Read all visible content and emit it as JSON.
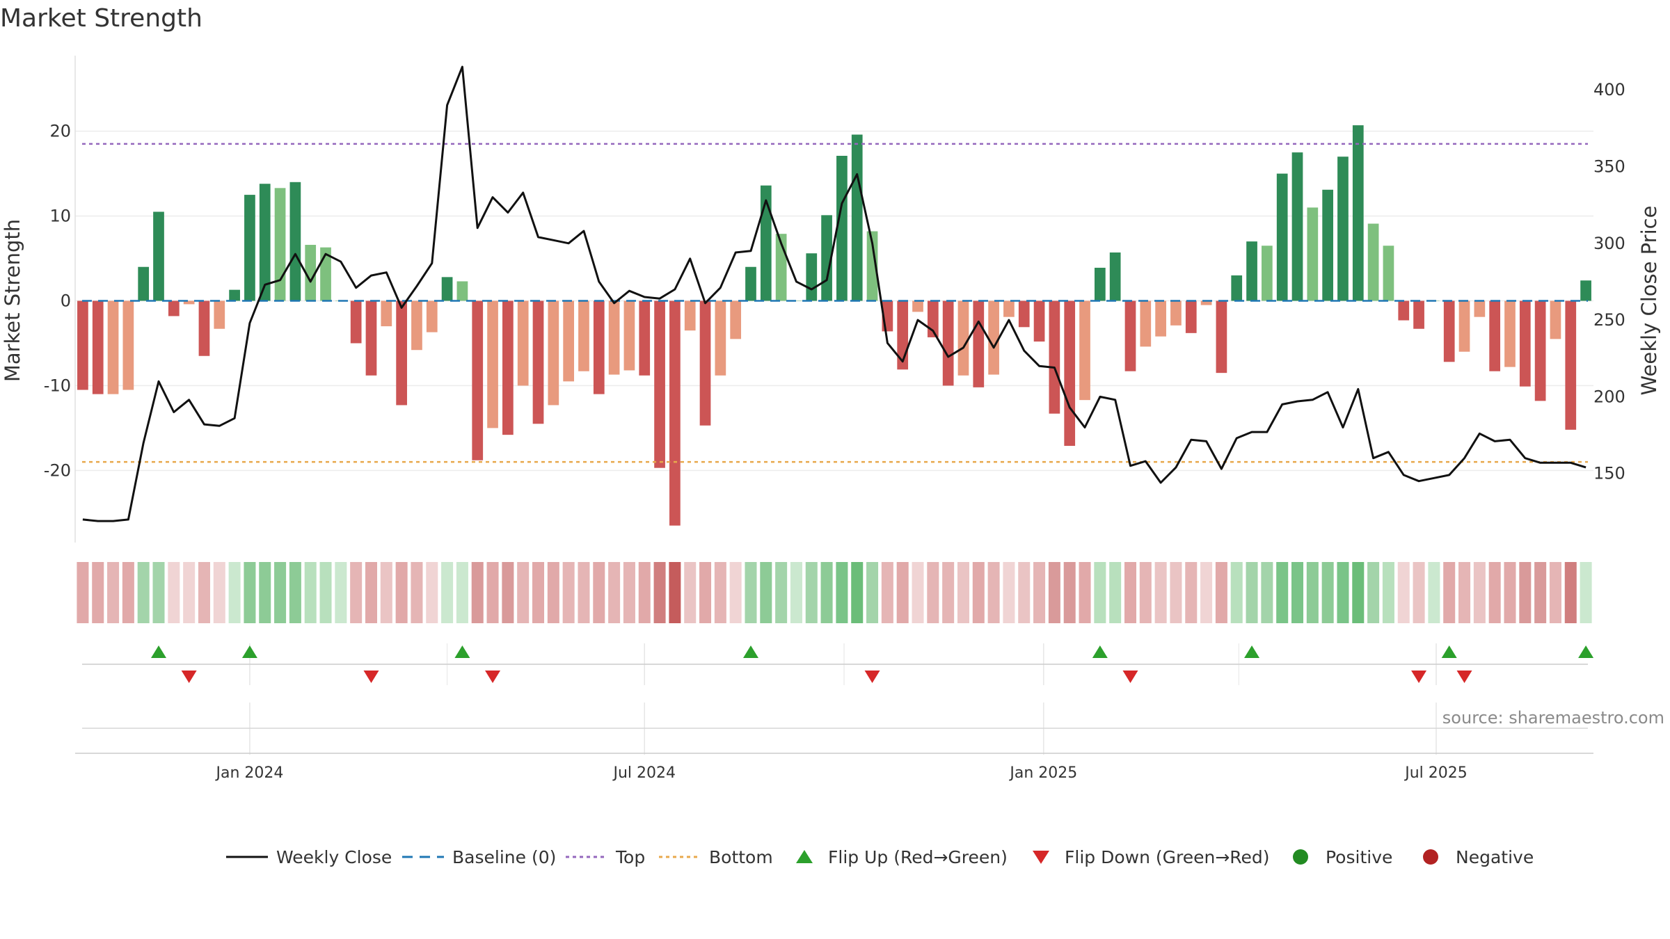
{
  "chart_data": {
    "type": "bar",
    "title": "Market Strength",
    "ylabel_left": "Market Strength",
    "ylabel_right": "Weekly Close Price",
    "source": "source: sharemaestro.com",
    "left_yticks": [
      20,
      10,
      0,
      -10,
      -20
    ],
    "left_ylim": [
      -28.5,
      28.5
    ],
    "right_yticks": [
      400,
      350,
      300,
      250,
      200,
      150
    ],
    "right_ylim": [
      105,
      420
    ],
    "x_range": [
      "2023-10-16",
      "2025-09-08"
    ],
    "x_ticks": [
      {
        "date": "2024-01-01",
        "label": "Jan 2024"
      },
      {
        "date": "2024-07-01",
        "label": "Jul 2024"
      },
      {
        "date": "2025-01-01",
        "label": "Jan 2025"
      },
      {
        "date": "2025-07-01",
        "label": "Jul 2025"
      }
    ],
    "top_level": 18.5,
    "bottom_level": -19,
    "dates": [
      "2023-10-16",
      "2023-10-23",
      "2023-10-30",
      "2023-11-06",
      "2023-11-13",
      "2023-11-20",
      "2023-11-27",
      "2023-12-04",
      "2023-12-11",
      "2023-12-18",
      "2023-12-25",
      "2024-01-01",
      "2024-01-08",
      "2024-01-15",
      "2024-01-22",
      "2024-01-29",
      "2024-02-05",
      "2024-02-12",
      "2024-02-19",
      "2024-02-26",
      "2024-03-04",
      "2024-03-11",
      "2024-03-18",
      "2024-03-25",
      "2024-04-01",
      "2024-04-08",
      "2024-04-15",
      "2024-04-22",
      "2024-04-29",
      "2024-05-06",
      "2024-05-13",
      "2024-05-20",
      "2024-05-27",
      "2024-06-03",
      "2024-06-10",
      "2024-06-17",
      "2024-06-24",
      "2024-07-01",
      "2024-07-08",
      "2024-07-15",
      "2024-07-22",
      "2024-07-29",
      "2024-08-05",
      "2024-08-12",
      "2024-08-19",
      "2024-08-26",
      "2024-09-02",
      "2024-09-09",
      "2024-09-16",
      "2024-09-23",
      "2024-09-30",
      "2024-10-07",
      "2024-10-14",
      "2024-10-21",
      "2024-10-28",
      "2024-11-04",
      "2024-11-11",
      "2024-11-18",
      "2024-11-25",
      "2024-12-02",
      "2024-12-09",
      "2024-12-16",
      "2024-12-23",
      "2024-12-30",
      "2025-01-06",
      "2025-01-13",
      "2025-01-20",
      "2025-01-27",
      "2025-02-03",
      "2025-02-10",
      "2025-02-17",
      "2025-02-24",
      "2025-03-03",
      "2025-03-10",
      "2025-03-17",
      "2025-03-24",
      "2025-03-31",
      "2025-04-07",
      "2025-04-14",
      "2025-04-21",
      "2025-04-28",
      "2025-05-05",
      "2025-05-12",
      "2025-05-19",
      "2025-05-26",
      "2025-06-02",
      "2025-06-09",
      "2025-06-16",
      "2025-06-23",
      "2025-06-30",
      "2025-07-07",
      "2025-07-14",
      "2025-07-21",
      "2025-07-28",
      "2025-08-04",
      "2025-08-11",
      "2025-08-18",
      "2025-08-25",
      "2025-09-01",
      "2025-09-08"
    ],
    "strength": [
      -10.5,
      -11,
      -11,
      -10.5,
      4,
      10.5,
      -1.8,
      -0.4,
      -6.5,
      -3.3,
      1.3,
      12.5,
      13.8,
      13.3,
      14,
      6.6,
      6.3,
      0,
      -5,
      -8.8,
      -3,
      -12.3,
      -5.8,
      -3.7,
      2.8,
      2.3,
      -18.8,
      -15,
      -15.8,
      -10,
      -14.5,
      -12.3,
      -9.5,
      -8.3,
      -11,
      -8.7,
      -8.2,
      -8.8,
      -19.7,
      -26.5,
      -3.5,
      -14.7,
      -8.8,
      -4.5,
      4,
      13.6,
      7.9,
      0,
      5.6,
      10.1,
      17.1,
      19.6,
      8.2,
      -3.6,
      -8.1,
      -1.3,
      -4.3,
      -10,
      -8.8,
      -10.2,
      -8.7,
      -1.9,
      -3.1,
      -4.8,
      -13.3,
      -17.1,
      -11.7,
      3.9,
      5.7,
      -8.3,
      -5.4,
      -4.2,
      -2.9,
      -3.8,
      -0.5,
      -8.5,
      3,
      7,
      6.5,
      15,
      17.5,
      11,
      13.1,
      17,
      20.7,
      9.1,
      6.5,
      -2.3,
      -3.3,
      0,
      -7.2,
      -6,
      -1.9,
      -8.3,
      -7.8,
      -10.1,
      -11.8,
      -4.5,
      -15.2,
      2.4
    ],
    "bar_colors": [
      "#cc5555",
      "#cc5555",
      "#e89a7e",
      "#e89a7e",
      "#2e8b57",
      "#2e8b57",
      "#cc5555",
      "#e89a7e",
      "#cc5555",
      "#e89a7e",
      "#2e8b57",
      "#2e8b57",
      "#2e8b57",
      "#7ec07e",
      "#2e8b57",
      "#7ec07e",
      "#7ec07e",
      "#7ec07e",
      "#cc5555",
      "#cc5555",
      "#e89a7e",
      "#cc5555",
      "#e89a7e",
      "#e89a7e",
      "#2e8b57",
      "#7ec07e",
      "#cc5555",
      "#e89a7e",
      "#cc5555",
      "#e89a7e",
      "#cc5555",
      "#e89a7e",
      "#e89a7e",
      "#e89a7e",
      "#cc5555",
      "#e89a7e",
      "#e89a7e",
      "#cc5555",
      "#cc5555",
      "#cc5555",
      "#e89a7e",
      "#cc5555",
      "#e89a7e",
      "#e89a7e",
      "#2e8b57",
      "#2e8b57",
      "#7ec07e",
      "#7ec07e",
      "#2e8b57",
      "#2e8b57",
      "#2e8b57",
      "#2e8b57",
      "#7ec07e",
      "#cc5555",
      "#cc5555",
      "#e89a7e",
      "#cc5555",
      "#cc5555",
      "#e89a7e",
      "#cc5555",
      "#e89a7e",
      "#e89a7e",
      "#cc5555",
      "#cc5555",
      "#cc5555",
      "#cc5555",
      "#e89a7e",
      "#2e8b57",
      "#2e8b57",
      "#cc5555",
      "#e89a7e",
      "#e89a7e",
      "#e89a7e",
      "#cc5555",
      "#e89a7e",
      "#cc5555",
      "#2e8b57",
      "#2e8b57",
      "#7ec07e",
      "#2e8b57",
      "#2e8b57",
      "#7ec07e",
      "#2e8b57",
      "#2e8b57",
      "#2e8b57",
      "#7ec07e",
      "#7ec07e",
      "#cc5555",
      "#cc5555",
      "#7ec07e",
      "#cc5555",
      "#e89a7e",
      "#e89a7e",
      "#cc5555",
      "#e89a7e",
      "#cc5555",
      "#cc5555",
      "#e89a7e",
      "#cc5555",
      "#2e8b57"
    ],
    "weekly_close": [
      120,
      119,
      119,
      120,
      170,
      210,
      190,
      198,
      182,
      181,
      186,
      248,
      273,
      276,
      293,
      275,
      293,
      288,
      271,
      279,
      281,
      258,
      272,
      287,
      390,
      415,
      310,
      330,
      320,
      333,
      304,
      302,
      300,
      308,
      275,
      261,
      269,
      265,
      264,
      270,
      290,
      261,
      271,
      294,
      295,
      328,
      300,
      275,
      270,
      276,
      326,
      345,
      300,
      235,
      223,
      250,
      243,
      226,
      232,
      249,
      232,
      250,
      230,
      220,
      219,
      193,
      180,
      200,
      198,
      155,
      158,
      144,
      154,
      172,
      171,
      153,
      173,
      177,
      177,
      195,
      197,
      198,
      203,
      180,
      205,
      160,
      164,
      149,
      145,
      147,
      149,
      160,
      176,
      171,
      172,
      160,
      157,
      157,
      157,
      154
    ],
    "heat_colors": [
      "#e1a9a9",
      "#e1a9a9",
      "#e5b5b5",
      "#e1a9a9",
      "#a3d4aa",
      "#a3d4aa",
      "#f0d4d4",
      "#f0d4d4",
      "#e5b5b5",
      "#f0d4d4",
      "#cbe8cf",
      "#8dcb96",
      "#8dcb96",
      "#8dcb96",
      "#8dcb96",
      "#b8e0bd",
      "#b8e0bd",
      "#cbe8cf",
      "#e5b5b5",
      "#e1a9a9",
      "#eac4c4",
      "#e1a9a9",
      "#e5b5b5",
      "#f0d4d4",
      "#cbe8cf",
      "#cbe8cf",
      "#d99a9a",
      "#e1a9a9",
      "#d99a9a",
      "#e5b5b5",
      "#e1a9a9",
      "#e1a9a9",
      "#e5b5b5",
      "#e5b5b5",
      "#e1a9a9",
      "#e5b5b5",
      "#e5b5b5",
      "#e1a9a9",
      "#d07e7e",
      "#c55c5c",
      "#eac4c4",
      "#e1a9a9",
      "#e5b5b5",
      "#f0d4d4",
      "#a3d4aa",
      "#8dcb96",
      "#a3d4aa",
      "#cbe8cf",
      "#a3d4aa",
      "#8dcb96",
      "#7ac488",
      "#6bbd79",
      "#a3d4aa",
      "#e5b5b5",
      "#e1a9a9",
      "#f0d4d4",
      "#e5b5b5",
      "#e5b5b5",
      "#eac4c4",
      "#e1a9a9",
      "#e5b5b5",
      "#f0d4d4",
      "#eac4c4",
      "#e5b5b5",
      "#d99a9a",
      "#d99a9a",
      "#e1a9a9",
      "#b8e0bd",
      "#b8e0bd",
      "#e1a9a9",
      "#e5b5b5",
      "#eac4c4",
      "#eac4c4",
      "#e5b5b5",
      "#f0d4d4",
      "#e1a9a9",
      "#b8e0bd",
      "#a3d4aa",
      "#a3d4aa",
      "#7ac488",
      "#7ac488",
      "#8dcb96",
      "#8dcb96",
      "#7ac488",
      "#6bbd79",
      "#a3d4aa",
      "#b8e0bd",
      "#f0d4d4",
      "#eac4c4",
      "#cbe8cf",
      "#e1a9a9",
      "#e5b5b5",
      "#eac4c4",
      "#e1a9a9",
      "#e1a9a9",
      "#d99a9a",
      "#d99a9a",
      "#e5b5b5",
      "#d07e7e",
      "#cbe8cf"
    ],
    "flip_up_dates": [
      "2023-11-20",
      "2024-01-01",
      "2024-04-08",
      "2024-08-19",
      "2025-01-27",
      "2025-04-07",
      "2025-07-07",
      "2025-09-08"
    ],
    "flip_down_dates": [
      "2023-12-04",
      "2024-02-26",
      "2024-04-22",
      "2024-10-14",
      "2025-02-10",
      "2025-06-23",
      "2025-07-14"
    ],
    "legend": [
      {
        "label": "Weekly Close",
        "kind": "line",
        "color": "#111111"
      },
      {
        "label": "Baseline (0)",
        "kind": "dash",
        "color": "#1f77b4"
      },
      {
        "label": "Top",
        "kind": "dot",
        "color": "#9467bd"
      },
      {
        "label": "Bottom",
        "kind": "dot",
        "color": "#e8a94c"
      },
      {
        "label": "Flip Up (Red→Green)",
        "kind": "up",
        "color": "#2ca02c"
      },
      {
        "label": "Flip Down (Green→Red)",
        "kind": "down",
        "color": "#d62728"
      },
      {
        "label": "Positive",
        "kind": "circle",
        "color": "#228b22"
      },
      {
        "label": "Negative",
        "kind": "circle",
        "color": "#b22222"
      }
    ],
    "colors": {
      "top_line": "#9467bd",
      "bottom_line": "#e8a94c",
      "baseline": "#1f77b4",
      "close_line": "#111111",
      "flip_up": "#2ca02c",
      "flip_down": "#d62728"
    }
  }
}
